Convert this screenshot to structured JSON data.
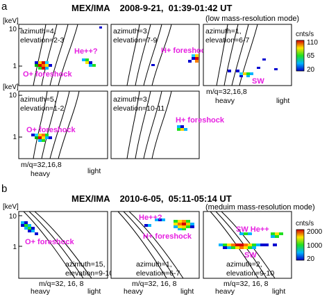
{
  "part_a": {
    "letter": "a",
    "title": "MEX/IMA    2008-9-21,  01:39-01:42 UT",
    "mode": "(low mass-resolution mode)",
    "unit": "[keV]",
    "y_ticks": [
      "10",
      "1"
    ],
    "colorbar": {
      "unit": "cnts/s",
      "ticks": [
        "110",
        "65",
        "20"
      ]
    },
    "panels": [
      {
        "azimuth": "azimuth=4,",
        "elevation": "elevation=2-3",
        "annotations": [
          "He++?",
          "O+ foreshock"
        ]
      },
      {
        "azimuth": "azimuth=3,",
        "elevation": "elevation=7-9",
        "annotations": [
          "H+ foreshock"
        ]
      },
      {
        "azimuth": "azimuth=1,",
        "elevation": "elevation=6-7",
        "annotations": [
          "SW"
        ]
      },
      {
        "azimuth": "azimuth=5,",
        "elevation": "elevation=1-2",
        "annotations": [
          "O+ foreshock"
        ]
      },
      {
        "azimuth": "azimuth=3,",
        "elevation": "elevation=10-11",
        "annotations": [
          "H+ foreshock"
        ]
      }
    ],
    "mass_top": {
      "mq": "m/q=32,16,8",
      "heavy": "heavy",
      "light": "light"
    },
    "mass_bottom": {
      "mq": "m/q=32,16,8",
      "heavy": "heavy",
      "light": "light"
    }
  },
  "part_b": {
    "letter": "b",
    "title": "MEX/IMA    2010-6-05,  05:11-05:14 UT",
    "mode": "(meduim mass-resolution mode)",
    "unit": "[keV]",
    "y_ticks": [
      "10",
      "1"
    ],
    "colorbar": {
      "unit": "cnts/s",
      "ticks": [
        "2000",
        "1000",
        "20"
      ]
    },
    "panels": [
      {
        "azimuth": "azimuth=15,",
        "elevation": "elevation=9-10",
        "annotations": [
          "O+ foreshock"
        ]
      },
      {
        "azimuth": "azimuth=1,",
        "elevation": "elevation=6-7",
        "annotations": [
          "He++?",
          "H+ foreshock"
        ]
      },
      {
        "azimuth": "azimuth=2,",
        "elevation": "elevation=9-10",
        "annotations": [
          "SW He++",
          "SW"
        ]
      }
    ],
    "mass": [
      {
        "mq": "m/q=32, 16, 8",
        "heavy": "heavy",
        "light": "light"
      },
      {
        "mq": "m/q=32, 16, 8",
        "heavy": "heavy",
        "light": "light"
      },
      {
        "mq": "m/q=32, 16, 8",
        "heavy": "heavy",
        "light": "light"
      }
    ]
  },
  "colors": {
    "annotation": "#e61fe0",
    "axis": "#000000"
  }
}
